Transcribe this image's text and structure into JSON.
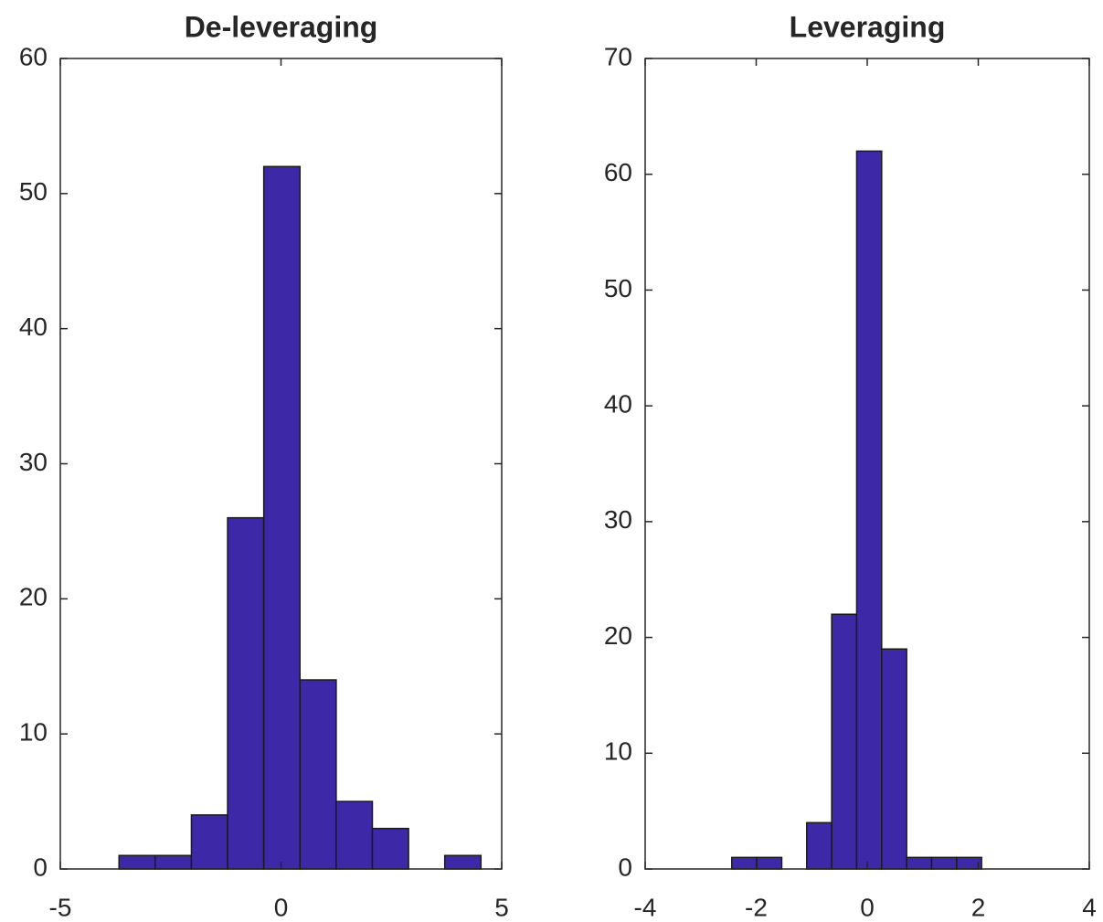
{
  "chart_data": [
    {
      "type": "histogram",
      "title": "De-leveraging",
      "bins": [
        -3.67,
        -2.85,
        -2.03,
        -1.21,
        -0.39,
        0.43,
        1.25,
        2.07,
        2.89,
        3.71,
        4.53
      ],
      "values": [
        1,
        1,
        4,
        26,
        52,
        14,
        5,
        3,
        0,
        1
      ],
      "color": "#3d29a8",
      "xlim": [
        -5,
        5
      ],
      "xticks": [
        -5,
        0,
        5
      ],
      "ylim": [
        0,
        60
      ],
      "yticks": [
        0,
        10,
        20,
        30,
        40,
        50,
        60
      ]
    },
    {
      "type": "histogram",
      "title": "Leveraging",
      "bins": [
        -2.44,
        -1.99,
        -1.54,
        -1.09,
        -0.64,
        -0.19,
        0.26,
        0.71,
        1.16,
        1.61,
        2.06
      ],
      "values": [
        1,
        1,
        0,
        4,
        22,
        62,
        19,
        1,
        1,
        1
      ],
      "color": "#3d29a8",
      "xlim": [
        -4,
        4
      ],
      "xticks": [
        -4,
        -2,
        0,
        2,
        4
      ],
      "ylim": [
        0,
        70
      ],
      "yticks": [
        0,
        10,
        20,
        30,
        40,
        50,
        60,
        70
      ]
    }
  ]
}
